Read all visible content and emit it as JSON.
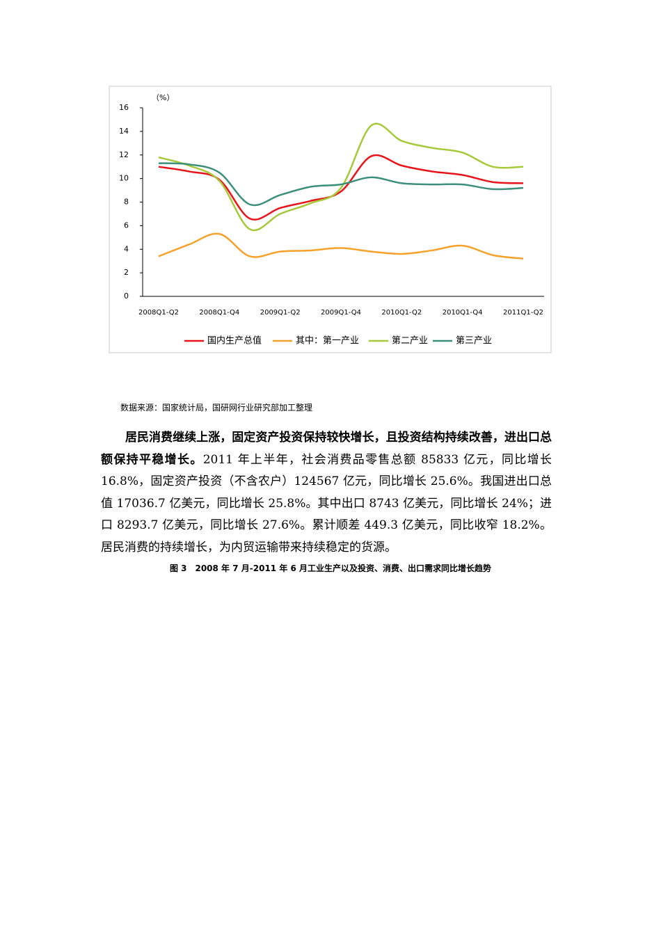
{
  "chart_data": {
    "type": "line",
    "y_label": "（%）",
    "categories": [
      "2008Q1-Q2",
      null,
      "2008Q1-Q4",
      null,
      "2009Q1-Q2",
      null,
      "2009Q1-Q4",
      null,
      "2010Q1-Q2",
      null,
      "2010Q1-Q4",
      null,
      "2011Q1-Q2"
    ],
    "series": [
      {
        "name": "国内生产总值",
        "color": "#e8141b",
        "values": [
          11.0,
          10.6,
          9.9,
          6.6,
          7.5,
          8.1,
          8.9,
          11.9,
          11.1,
          10.6,
          10.3,
          9.7,
          9.6
        ]
      },
      {
        "name": "其中：第一产业",
        "color": "#f5a12a",
        "values": [
          3.4,
          4.4,
          5.3,
          3.4,
          3.8,
          3.9,
          4.1,
          3.8,
          3.6,
          3.9,
          4.3,
          3.5,
          3.2
        ]
      },
      {
        "name": "第二产业",
        "color": "#a6c93a",
        "values": [
          11.8,
          11.1,
          9.8,
          5.7,
          7.0,
          7.9,
          9.2,
          14.5,
          13.2,
          12.6,
          12.2,
          11.0,
          11.0
        ]
      },
      {
        "name": "第三产业",
        "color": "#3c8f7a",
        "values": [
          11.3,
          11.2,
          10.5,
          7.8,
          8.6,
          9.3,
          9.5,
          10.1,
          9.6,
          9.5,
          9.5,
          9.1,
          9.2
        ]
      }
    ],
    "ylim": [
      0,
      16
    ],
    "yticks": [
      0,
      2,
      4,
      6,
      8,
      10,
      12,
      14,
      16
    ],
    "legend": "bottom",
    "grid": false
  },
  "source": "数据来源：国家统计局，国研网行业研究部加工整理",
  "paragraph": {
    "lead": "居民消费继续上涨，固定资产投资保持较快增长，且投资结构持续改善，进出口总额保持平稳增长。",
    "body": "2011 年上半年，社会消费品零售总额 85833 亿元，同比增长 16.8%，固定资产投资（不含农户）124567 亿元，同比增长 25.6%。我国进出口总值 17036.7 亿美元，同比增长 25.8%。其中出口 8743 亿美元，同比增长 24%；进口 8293.7 亿美元，同比增长 27.6%。累计顺差 449.3 亿美元，同比收窄 18.2%。居民消费的持续增长，为内贸运输带来持续稳定的货源。"
  },
  "caption": "图 3　2008 年 7 月-2011 年 6 月工业生产以及投资、消费、出口需求同比增长趋势"
}
